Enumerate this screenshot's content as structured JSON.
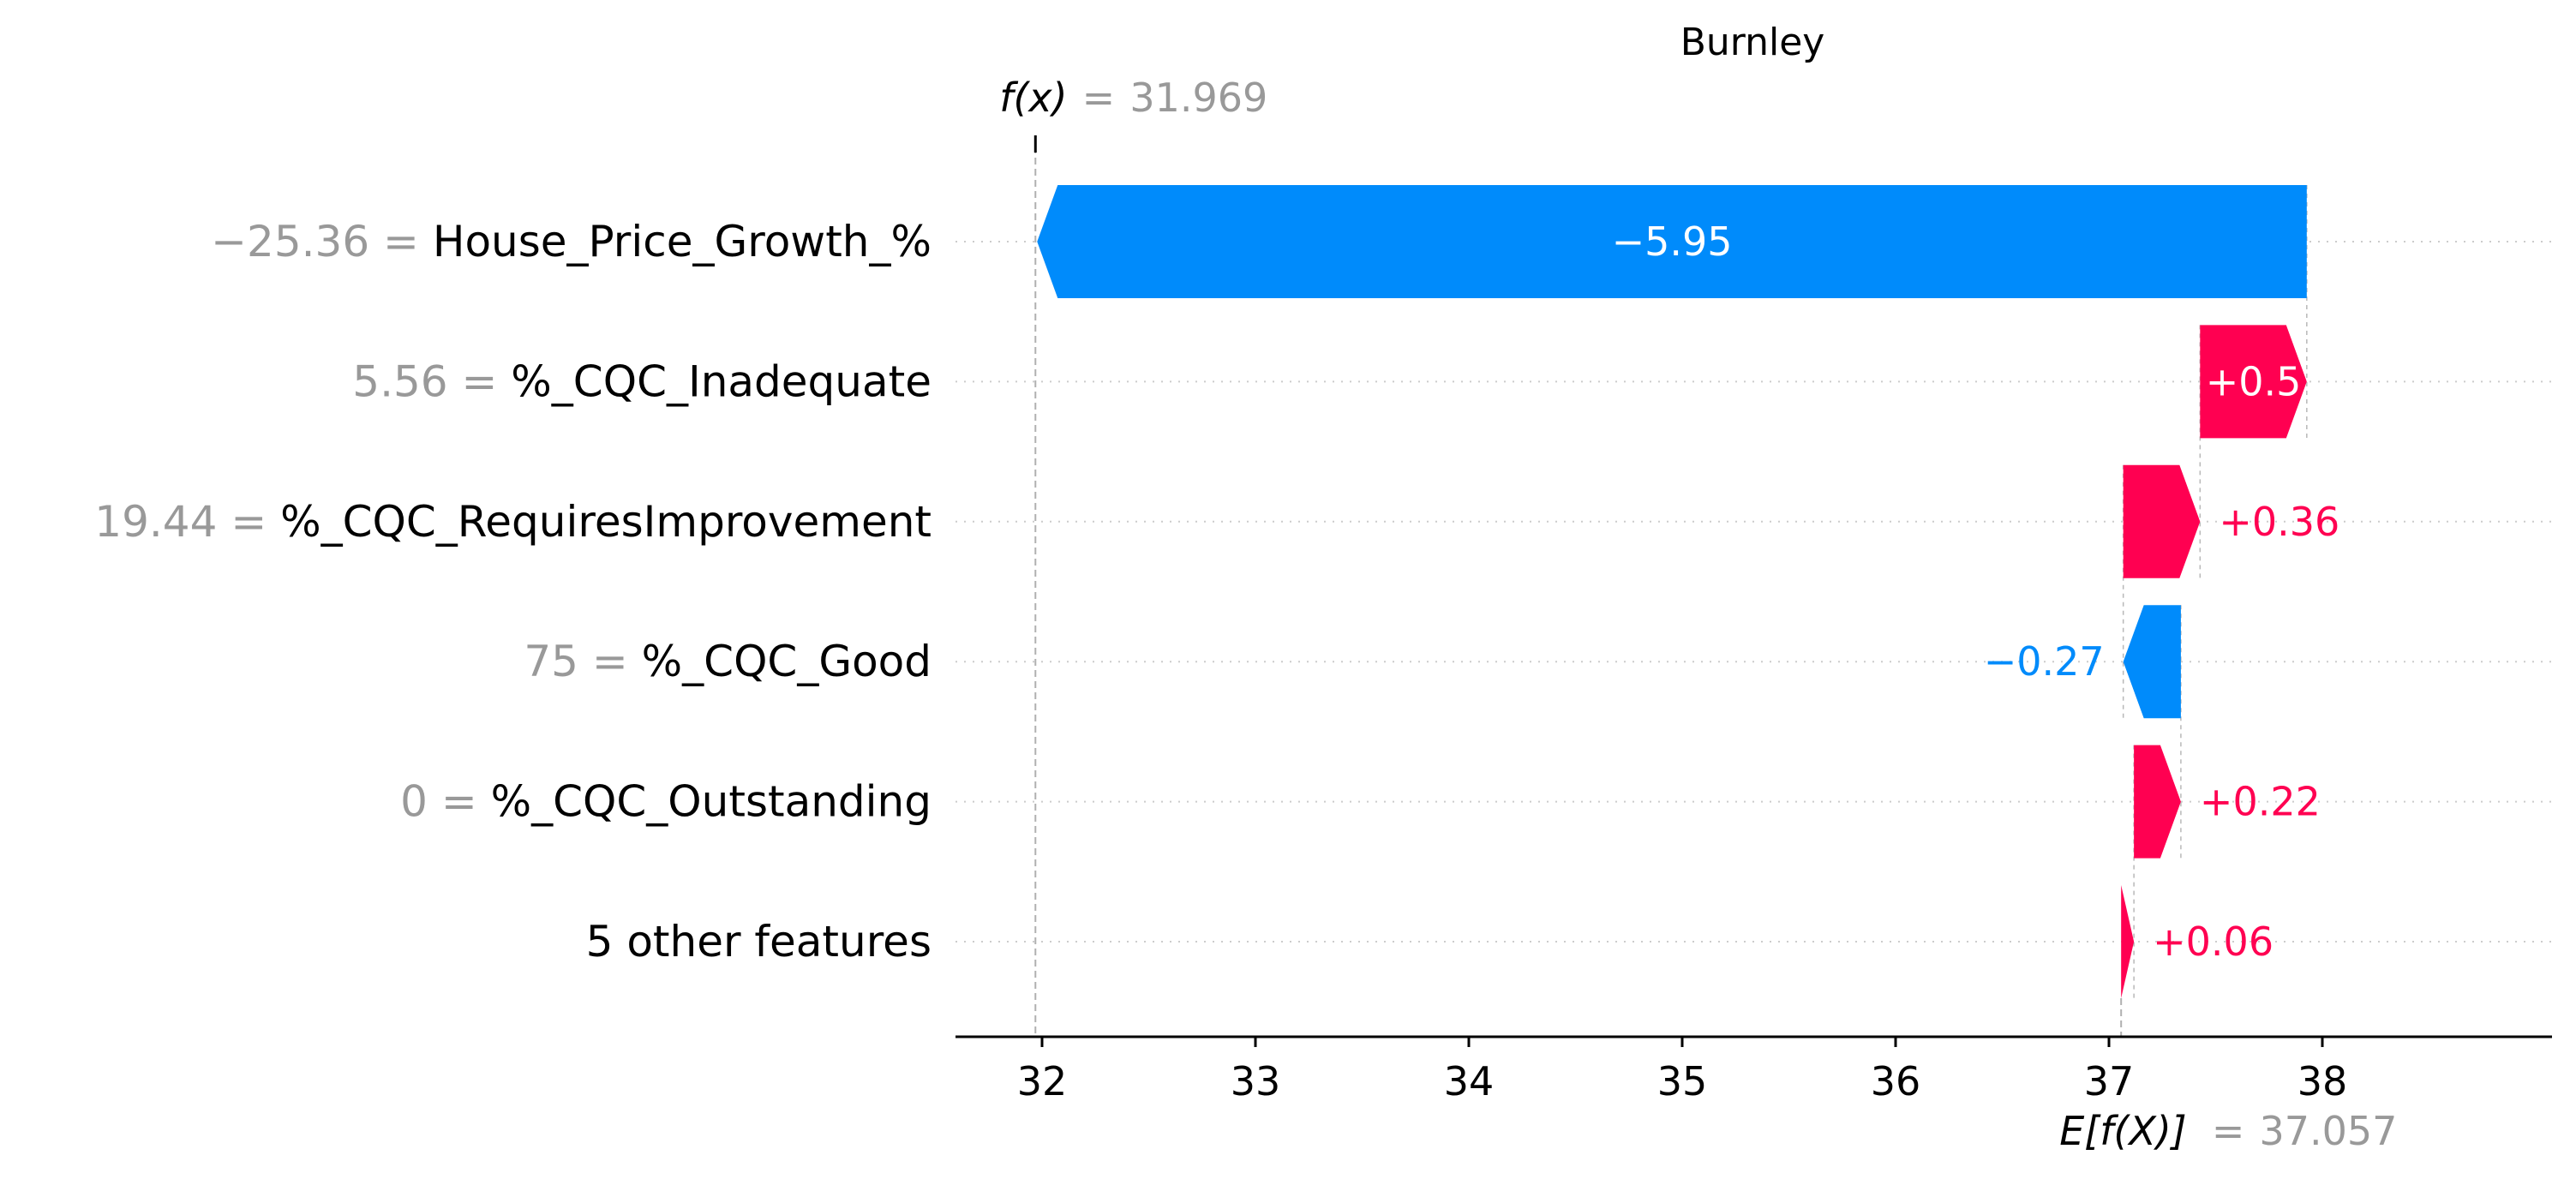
{
  "chart_data": {
    "type": "waterfall",
    "title": "Burnley",
    "output": {
      "name": "f(x)",
      "value_text": "31.969",
      "value": 31.969
    },
    "base": {
      "name": "E[f(X)]",
      "value_text": "37.057",
      "value": 37.057
    },
    "xlim": [
      31.6,
      38.9
    ],
    "xticks": [
      32,
      33,
      34,
      35,
      36,
      37,
      38
    ],
    "grid": "horizontal dotted",
    "features": [
      {
        "value_text": "−25.36",
        "name": "House_Price_Growth_%",
        "shap": -5.95,
        "label": "−5.95"
      },
      {
        "value_text": "5.56",
        "name": "%_CQC_Inadequate",
        "shap": 0.5,
        "label": "+0.5"
      },
      {
        "value_text": "19.44",
        "name": "%_CQC_RequiresImprovement",
        "shap": 0.36,
        "label": "+0.36"
      },
      {
        "value_text": "75",
        "name": "%_CQC_Good",
        "shap": -0.27,
        "label": "−0.27"
      },
      {
        "value_text": "0",
        "name": "%_CQC_Outstanding",
        "shap": 0.22,
        "label": "+0.22"
      },
      {
        "value_text": "",
        "name": "5 other features",
        "shap": 0.06,
        "label": "+0.06"
      }
    ],
    "colors": {
      "positive": "#ff0051",
      "negative": "#008bfb",
      "inside_label": "#ffffff",
      "muted_text": "#999999"
    }
  }
}
